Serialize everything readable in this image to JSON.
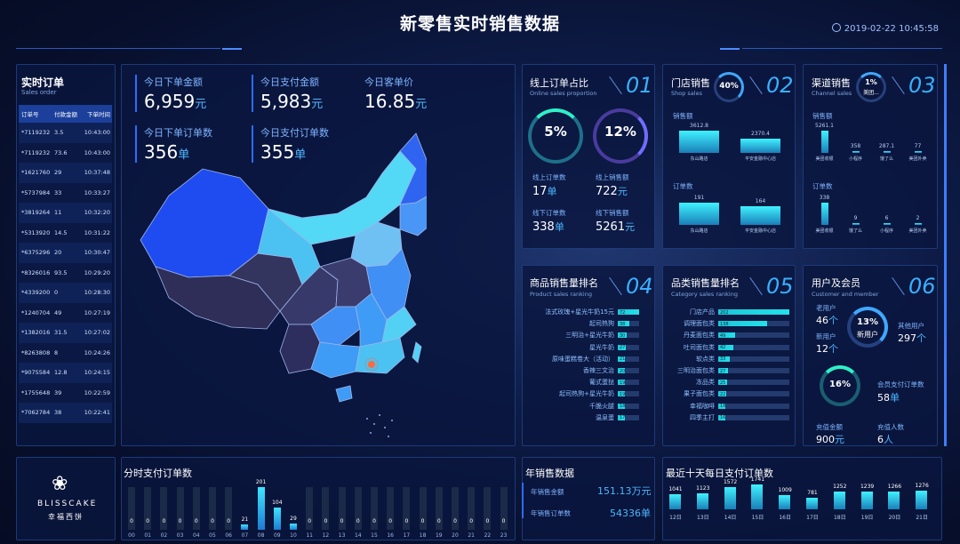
{
  "header": {
    "title": "新零售实时销售数据",
    "datetime": "2019-02-22 10:45:58"
  },
  "orders": {
    "title": "实时订单",
    "subtitle": "Sales order",
    "columns": [
      "订单号",
      "付款金额",
      "下单时间"
    ],
    "rows": [
      [
        "*7119232",
        "3.5",
        "10:43:00"
      ],
      [
        "*7119232",
        "73.6",
        "10:43:00"
      ],
      [
        "*1621760",
        "29",
        "10:37:48"
      ],
      [
        "*5737984",
        "33",
        "10:33:27"
      ],
      [
        "*3819264",
        "11",
        "10:32:20"
      ],
      [
        "*5313920",
        "14.5",
        "10:31:22"
      ],
      [
        "*6375296",
        "20",
        "10:30:47"
      ],
      [
        "*8326016",
        "93.5",
        "10:29:20"
      ],
      [
        "*4339200",
        "0",
        "10:28:30"
      ],
      [
        "*1240704",
        "49",
        "10:27:19"
      ],
      [
        "*1382016",
        "31.5",
        "10:27:02"
      ],
      [
        "*8263808",
        "8",
        "10:24:26"
      ],
      [
        "*9075584",
        "12.8",
        "10:24:15"
      ],
      [
        "*1755648",
        "39",
        "10:22:59"
      ],
      [
        "*7062784",
        "38",
        "10:22:41"
      ]
    ]
  },
  "kpis": [
    {
      "label": "今日下单金额",
      "value": "6,959",
      "unit": "元"
    },
    {
      "label": "今日支付金额",
      "value": "5,983",
      "unit": "元"
    },
    {
      "label": "今日客单价",
      "value": "16.85",
      "unit": "元"
    },
    {
      "label": "今日下单订单数",
      "value": "356",
      "unit": "单"
    },
    {
      "label": "今日支付订单数",
      "value": "355",
      "unit": "单"
    }
  ],
  "online": {
    "title": "线上订单占比",
    "subtitle": "Online sales proportion",
    "num": "01",
    "ring1": "5%",
    "ring2": "12%",
    "l1": "线上订单数",
    "v1": "17",
    "u1": "单",
    "l2": "线上销售额",
    "v2": "722",
    "u2": "元",
    "l3": "线下订单数",
    "v3": "338",
    "u3": "单",
    "l4": "线下销售额",
    "v4": "5261",
    "u4": "元"
  },
  "shop": {
    "title": "门店销售",
    "subtitle": "Shop sales",
    "num": "02",
    "ring": "40%",
    "sales_label": "销售额",
    "orders_label": "订单数",
    "sales": [
      {
        "name": "东山路店",
        "value": 3612.8
      },
      {
        "name": "平安金融中心店",
        "value": 2370.4
      }
    ],
    "orders": [
      {
        "name": "东山路店",
        "value": 191
      },
      {
        "name": "平安金融中心店",
        "value": 164
      }
    ]
  },
  "channel": {
    "title": "渠道销售",
    "subtitle": "Channel sales",
    "num": "03",
    "ring": "1%",
    "ring_sub": "美团...",
    "sales_label": "销售额",
    "orders_label": "订单数",
    "sales": [
      {
        "name": "美团收银",
        "value": 5261.1
      },
      {
        "name": "小程序",
        "value": 358
      },
      {
        "name": "饿了么",
        "value": 287.1
      },
      {
        "name": "美团外卖",
        "value": 77
      }
    ],
    "orders": [
      {
        "name": "美团收银",
        "value": 338
      },
      {
        "name": "饿了么",
        "value": 9
      },
      {
        "name": "小程序",
        "value": 6
      },
      {
        "name": "美团外卖",
        "value": 2
      }
    ]
  },
  "product_rank": {
    "title": "商品销售量排名",
    "subtitle": "Product sales ranking",
    "num": "04",
    "items": [
      {
        "name": "法式玫瑰+星光牛奶15元",
        "value": 72
      },
      {
        "name": "起司热狗",
        "value": 38
      },
      {
        "name": "三明治+星光牛奶",
        "value": 30
      },
      {
        "name": "星光牛奶",
        "value": 27
      },
      {
        "name": "原味蛋糕卷大（活动）",
        "value": 21
      },
      {
        "name": "香辣三文治",
        "value": 20
      },
      {
        "name": "葡式蛋挞",
        "value": 19
      },
      {
        "name": "起司热狗+星光牛奶",
        "value": 19
      },
      {
        "name": "千脆火腿",
        "value": 18
      },
      {
        "name": "温泉蛋",
        "value": 17
      }
    ]
  },
  "category_rank": {
    "title": "品类销售量排名",
    "subtitle": "Category sales ranking",
    "num": "05",
    "items": [
      {
        "name": "门店产品",
        "value": 202
      },
      {
        "name": "调理面包类",
        "value": 138
      },
      {
        "name": "丹麦面包类",
        "value": 49
      },
      {
        "name": "吐司面包类",
        "value": 42
      },
      {
        "name": "软点类",
        "value": 33
      },
      {
        "name": "三明治面包类",
        "value": 27
      },
      {
        "name": "冻品类",
        "value": 25
      },
      {
        "name": "果子面包类",
        "value": 22
      },
      {
        "name": "幸福咖啡",
        "value": 18
      },
      {
        "name": "四季主打",
        "value": 16
      }
    ]
  },
  "member": {
    "title": "用户及会员",
    "subtitle": "Customer and member",
    "num": "06",
    "old_label": "老用户",
    "old_v": "46",
    "new_label": "新用户",
    "new_v": "12",
    "unit": "个",
    "ring": "13%",
    "ring_sub": "新用户",
    "other_label": "其他用户",
    "other_v": "297",
    "ring2": "16%",
    "pay_label": "会员支付订单数",
    "pay_v": "58",
    "pay_unit": "单",
    "rc_label": "充值金额",
    "rc_v": "900",
    "rc_unit": "元",
    "rp_label": "充值人数",
    "rp_v": "6",
    "rp_unit": "人"
  },
  "brand": {
    "name": "BLISSCAKE",
    "cn": "幸福西饼"
  },
  "chart_data": [
    {
      "type": "bar",
      "title": "分时支付订单数",
      "categories": [
        "00",
        "01",
        "02",
        "03",
        "04",
        "05",
        "06",
        "07",
        "08",
        "09",
        "10",
        "11",
        "12",
        "13",
        "14",
        "15",
        "16",
        "17",
        "18",
        "19",
        "20",
        "21",
        "22",
        "23"
      ],
      "values": [
        0,
        0,
        0,
        0,
        0,
        0,
        0,
        21,
        201,
        104,
        29,
        0,
        0,
        0,
        0,
        0,
        0,
        0,
        0,
        0,
        0,
        0,
        0,
        0
      ]
    },
    {
      "type": "table",
      "title": "年销售数据",
      "rows": [
        {
          "label": "年销售金额",
          "value": "151.13万元"
        },
        {
          "label": "年销售订单数",
          "value": "54336单"
        }
      ]
    },
    {
      "type": "bar",
      "title": "最近十天每日支付订单数",
      "categories": [
        "12日",
        "13日",
        "14日",
        "15日",
        "16日",
        "17日",
        "18日",
        "19日",
        "20日",
        "21日"
      ],
      "values": [
        1041,
        1123,
        1572,
        1741,
        1009,
        781,
        1252,
        1239,
        1266,
        1276
      ]
    }
  ]
}
